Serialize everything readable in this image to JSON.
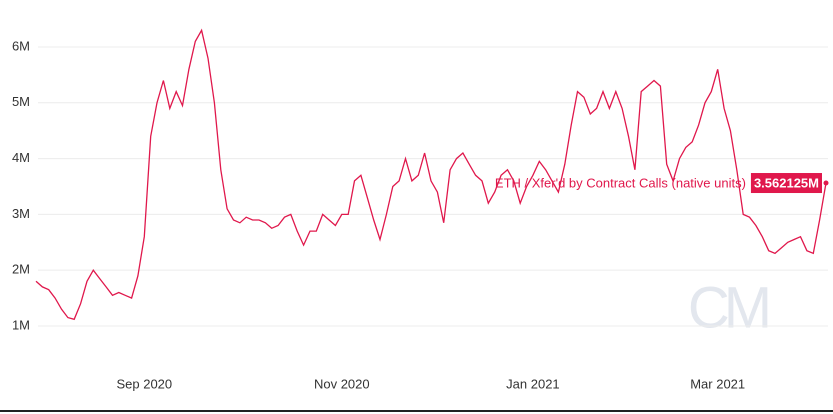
{
  "chart_data": {
    "type": "line",
    "categories": [
      null,
      null,
      null,
      null,
      null,
      null,
      null,
      null,
      null,
      null,
      null,
      null,
      null,
      null,
      null,
      null,
      null,
      "Sep 2020",
      null,
      null,
      null,
      null,
      null,
      null,
      null,
      null,
      null,
      null,
      null,
      null,
      null,
      null,
      null,
      null,
      null,
      null,
      null,
      null,
      null,
      null,
      null,
      null,
      null,
      null,
      null,
      null,
      null,
      null,
      "Nov 2020",
      null,
      null,
      null,
      null,
      null,
      null,
      null,
      null,
      null,
      null,
      null,
      null,
      null,
      null,
      null,
      null,
      null,
      null,
      null,
      null,
      null,
      null,
      null,
      null,
      null,
      null,
      null,
      null,
      null,
      "Jan 2021",
      null,
      null,
      null,
      null,
      null,
      null,
      null,
      null,
      null,
      null,
      null,
      null,
      null,
      null,
      null,
      null,
      null,
      null,
      null,
      null,
      null,
      null,
      null,
      null,
      null,
      null,
      null,
      null,
      "Mar 2021",
      null,
      null,
      null,
      null,
      null,
      null,
      null,
      null,
      null,
      null,
      null,
      null,
      null,
      null,
      null,
      null,
      null
    ],
    "series": [
      {
        "name": "ETH / Xfer'd by Contract Calls (native units)",
        "color": "#e0184c",
        "values": [
          1800000,
          1700000,
          1650000,
          1500000,
          1300000,
          1150000,
          1120000,
          1400000,
          1800000,
          2000000,
          1850000,
          1700000,
          1550000,
          1600000,
          1550000,
          1500000,
          1900000,
          2600000,
          4400000,
          5000000,
          5400000,
          4900000,
          5200000,
          4950000,
          5600000,
          6100000,
          6300000,
          5800000,
          5000000,
          3800000,
          3100000,
          2900000,
          2850000,
          2950000,
          2900000,
          2900000,
          2850000,
          2750000,
          2800000,
          2950000,
          3000000,
          2700000,
          2450000,
          2700000,
          2700000,
          3000000,
          2900000,
          2800000,
          3000000,
          3000000,
          3600000,
          3700000,
          3300000,
          2900000,
          2550000,
          3000000,
          3500000,
          3600000,
          4000000,
          3600000,
          3700000,
          4100000,
          3600000,
          3400000,
          2850000,
          3800000,
          4000000,
          4100000,
          3900000,
          3700000,
          3600000,
          3200000,
          3400000,
          3700000,
          3800000,
          3600000,
          3200000,
          3500000,
          3700000,
          3950000,
          3800000,
          3600000,
          3400000,
          3900000,
          4600000,
          5200000,
          5100000,
          4800000,
          4900000,
          5200000,
          4900000,
          5200000,
          4900000,
          4400000,
          3800000,
          5200000,
          5300000,
          5400000,
          5300000,
          3900000,
          3600000,
          4000000,
          4200000,
          4300000,
          4600000,
          5000000,
          5200000,
          5600000,
          4900000,
          4500000,
          3800000,
          3000000,
          2950000,
          2800000,
          2600000,
          2350000,
          2300000,
          2400000,
          2500000,
          2550000,
          2600000,
          2350000,
          2300000,
          2900000,
          3562125
        ],
        "value_labels": [
          null,
          null,
          null,
          null,
          null,
          null,
          null,
          null,
          null,
          null,
          null,
          null,
          null,
          null,
          null,
          null,
          null,
          null,
          null,
          null,
          null,
          null,
          null,
          null,
          null,
          null,
          null,
          null,
          null,
          null,
          null,
          null,
          null,
          null,
          null,
          null,
          null,
          null,
          null,
          null,
          null,
          null,
          null,
          null,
          null,
          null,
          null,
          null,
          null,
          null,
          null,
          null,
          null,
          null,
          null,
          null,
          null,
          null,
          null,
          null,
          null,
          null,
          null,
          null,
          null,
          null,
          null,
          null,
          null,
          null,
          null,
          null,
          null,
          null,
          null,
          null,
          null,
          null,
          null,
          null,
          null,
          null,
          null,
          null,
          null,
          null,
          null,
          null,
          null,
          null,
          null,
          null,
          null,
          null,
          null,
          null,
          null,
          null,
          null,
          null,
          null,
          null,
          null,
          null,
          null,
          null,
          null,
          null,
          null,
          null,
          null,
          null,
          null,
          null,
          null,
          null,
          null,
          null,
          null,
          null,
          null,
          null,
          null,
          null,
          "3.562125M"
        ]
      }
    ],
    "ylim": [
      480000,
      6663000
    ],
    "yticks": [
      {
        "value": 1000000,
        "label": "1M"
      },
      {
        "value": 2000000,
        "label": "2M"
      },
      {
        "value": 3000000,
        "label": "3M"
      },
      {
        "value": 4000000,
        "label": "4M"
      },
      {
        "value": 5000000,
        "label": "5M"
      },
      {
        "value": 6000000,
        "label": "6M"
      }
    ],
    "grid": true,
    "watermark": "CM"
  }
}
